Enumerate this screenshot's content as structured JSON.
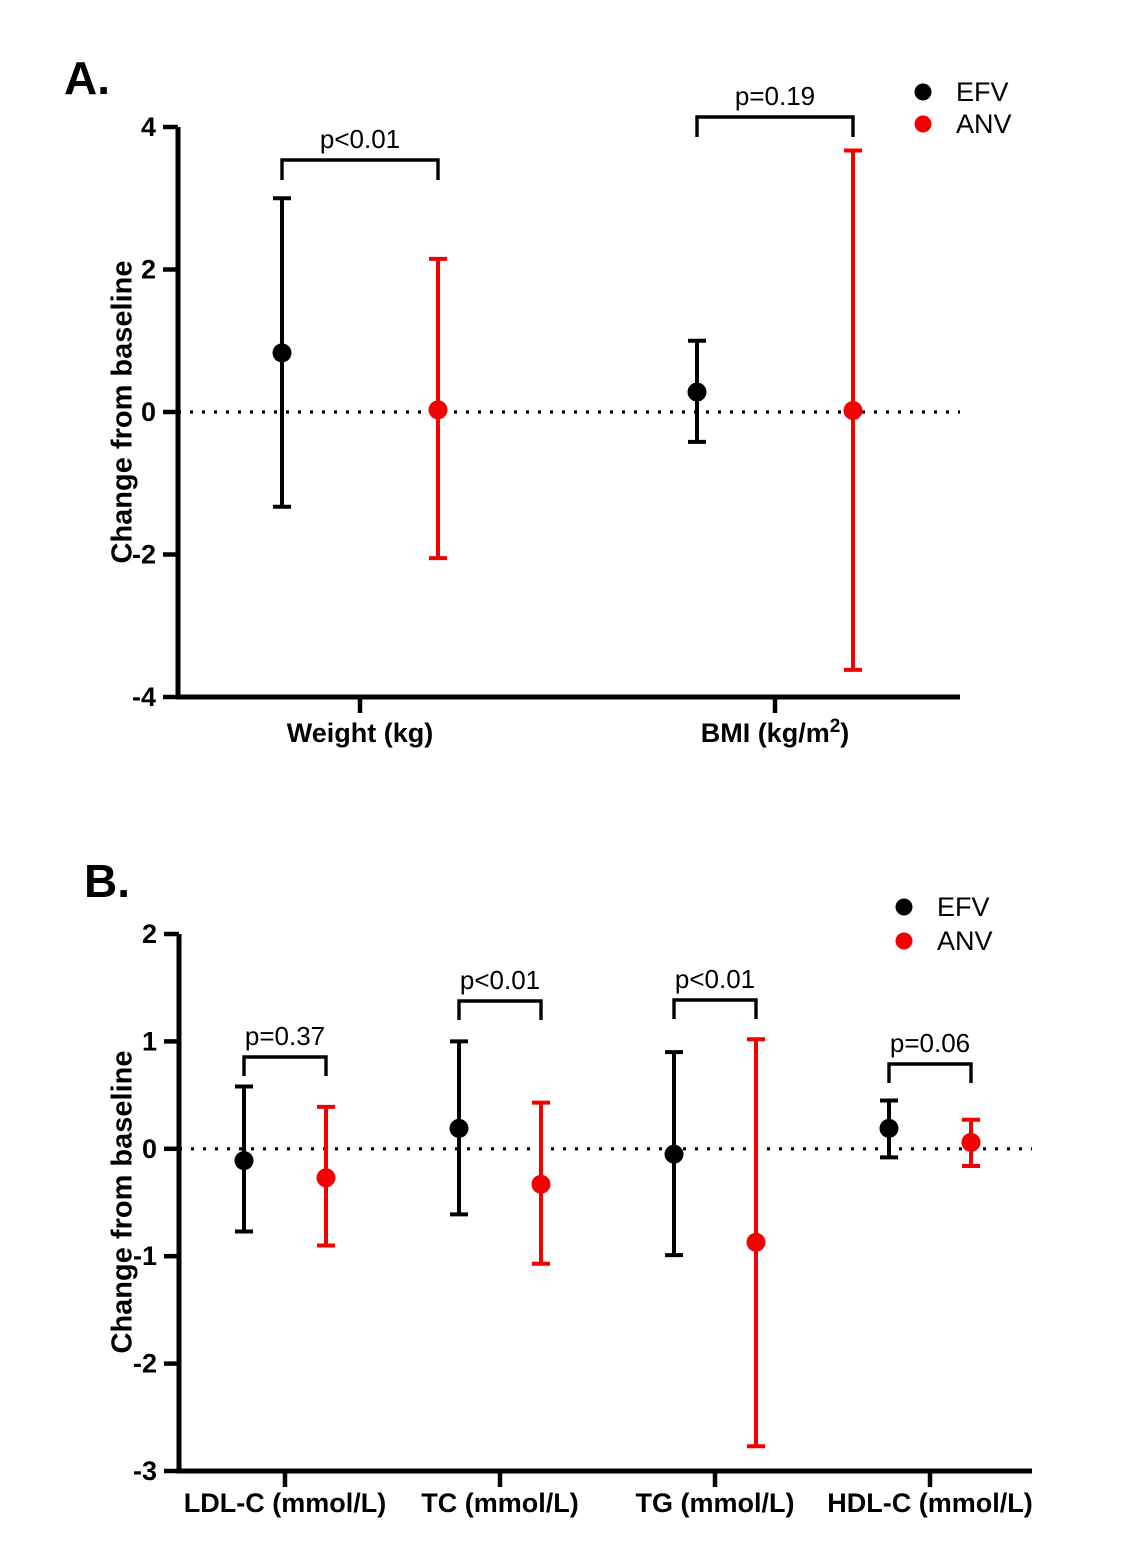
{
  "figure_background": "#ffffff",
  "colors": {
    "efv": "#000000",
    "anv": "#F40000"
  },
  "legend": {
    "position": "top-right",
    "items": [
      {
        "label": "EFV",
        "color": "#000000"
      },
      {
        "label": "ANV",
        "color": "#F40000"
      }
    ]
  },
  "chart_data": [
    {
      "type": "scatter",
      "panel_label": "A.",
      "title": "",
      "xlabel": "",
      "ylabel": "Change from baseline",
      "ylim": [
        -4,
        4
      ],
      "yticks": [
        4,
        2,
        0,
        -2,
        -4
      ],
      "grid": false,
      "zero_line_style": "dotted",
      "legend_position": "top-right",
      "categories": [
        {
          "label": "Weight (kg)",
          "sup": "",
          "post": ""
        },
        {
          "label": "BMI (kg/m",
          "sup": "2",
          "post": ")"
        }
      ],
      "series": [
        {
          "name": "EFV",
          "color": "#000000",
          "points": [
            {
              "mean": 0.83,
              "lo": -1.33,
              "hi": 3.0
            },
            {
              "mean": 0.28,
              "lo": -0.42,
              "hi": 1.0
            }
          ]
        },
        {
          "name": "ANV",
          "color": "#F40000",
          "points": [
            {
              "mean": 0.03,
              "lo": -2.05,
              "hi": 2.15
            },
            {
              "mean": 0.02,
              "lo": -3.62,
              "hi": 3.67
            }
          ]
        }
      ],
      "comparisons": [
        {
          "label": "p<0.01",
          "category_index": 0
        },
        {
          "label": "p=0.19",
          "category_index": 1
        }
      ]
    },
    {
      "type": "scatter",
      "panel_label": "B.",
      "title": "",
      "xlabel": "",
      "ylabel": "Change from baseline",
      "ylim": [
        -3,
        2
      ],
      "yticks": [
        2,
        1,
        0,
        -1,
        -2,
        -3
      ],
      "grid": false,
      "zero_line_style": "dotted",
      "legend_position": "top-right",
      "categories": [
        {
          "label": "LDL-C (mmol/L)",
          "sup": "",
          "post": ""
        },
        {
          "label": "TC (mmol/L)",
          "sup": "",
          "post": ""
        },
        {
          "label": "TG (mmol/L)",
          "sup": "",
          "post": ""
        },
        {
          "label": "HDL-C (mmol/L)",
          "sup": "",
          "post": ""
        }
      ],
      "series": [
        {
          "name": "EFV",
          "color": "#000000",
          "points": [
            {
              "mean": -0.11,
              "lo": -0.77,
              "hi": 0.58
            },
            {
              "mean": 0.19,
              "lo": -0.61,
              "hi": 1.0
            },
            {
              "mean": -0.05,
              "lo": -0.99,
              "hi": 0.9
            },
            {
              "mean": 0.19,
              "lo": -0.08,
              "hi": 0.45
            }
          ]
        },
        {
          "name": "ANV",
          "color": "#F40000",
          "points": [
            {
              "mean": -0.27,
              "lo": -0.9,
              "hi": 0.39
            },
            {
              "mean": -0.33,
              "lo": -1.07,
              "hi": 0.43
            },
            {
              "mean": -0.87,
              "lo": -2.77,
              "hi": 1.02
            },
            {
              "mean": 0.06,
              "lo": -0.16,
              "hi": 0.27
            }
          ]
        }
      ],
      "comparisons": [
        {
          "label": "p=0.37",
          "category_index": 0
        },
        {
          "label": "p<0.01",
          "category_index": 1
        },
        {
          "label": "p<0.01",
          "category_index": 2
        },
        {
          "label": "p=0.06",
          "category_index": 3
        }
      ]
    }
  ]
}
